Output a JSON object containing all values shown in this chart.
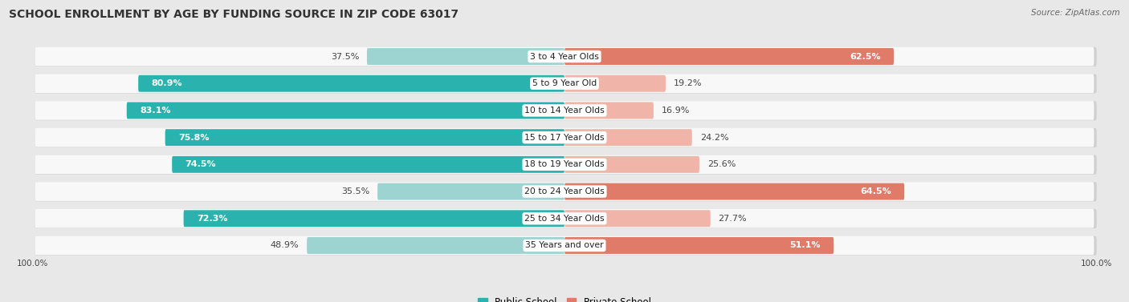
{
  "title": "School Enrollment by Age by Funding Source in Zip Code 63017",
  "source": "Source: ZipAtlas.com",
  "categories": [
    "3 to 4 Year Olds",
    "5 to 9 Year Old",
    "10 to 14 Year Olds",
    "15 to 17 Year Olds",
    "18 to 19 Year Olds",
    "20 to 24 Year Olds",
    "25 to 34 Year Olds",
    "35 Years and over"
  ],
  "public_values": [
    37.5,
    80.9,
    83.1,
    75.8,
    74.5,
    35.5,
    72.3,
    48.9
  ],
  "private_values": [
    62.5,
    19.2,
    16.9,
    24.2,
    25.6,
    64.5,
    27.7,
    51.1
  ],
  "public_color_dark": "#2ab3ae",
  "public_color_light": "#9dd4d2",
  "private_color_dark": "#e07b6a",
  "private_color_light": "#f0b4a8",
  "bg_color": "#e8e8e8",
  "row_bg": "#f8f8f8",
  "row_shadow": "#d0d0d0",
  "bar_height": 0.62,
  "title_fontsize": 10,
  "label_fontsize": 8,
  "cat_fontsize": 7.8,
  "legend_fontsize": 8.5,
  "source_fontsize": 7.5,
  "axis_label_fontsize": 7.5,
  "threshold_dark": 50
}
